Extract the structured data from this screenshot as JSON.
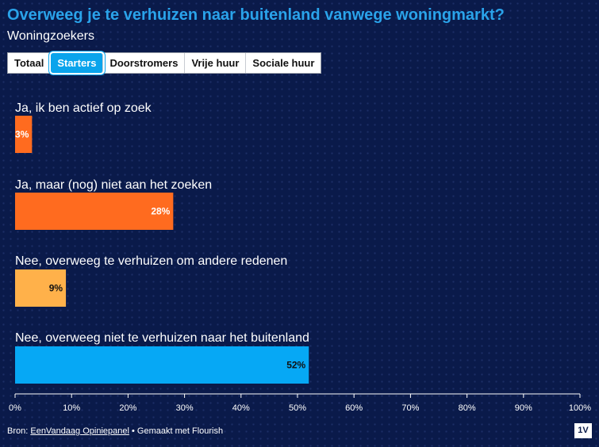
{
  "title": "Overweeg je te verhuizen naar buitenland vanwege woningmarkt?",
  "subtitle": "Woningzoekers",
  "tabs": [
    {
      "label": "Totaal",
      "active": false
    },
    {
      "label": "Starters",
      "active": true
    },
    {
      "label": "Doorstromers",
      "active": false
    },
    {
      "label": "Vrije huur",
      "active": false
    },
    {
      "label": "Sociale huur",
      "active": false
    }
  ],
  "chart_data": {
    "type": "bar",
    "orientation": "horizontal",
    "categories": [
      "Ja, ik ben actief op zoek",
      "Ja, maar (nog) niet aan het zoeken",
      "Nee, overweeg te verhuizen om andere redenen",
      "Nee, overweeg niet te verhuizen naar het buitenland"
    ],
    "values": [
      3,
      28,
      9,
      52
    ],
    "value_labels": [
      "3%",
      "28%",
      "9%",
      "52%"
    ],
    "colors": [
      "#ff6b1f",
      "#ff6b1f",
      "#ffb14a",
      "#06a8f5"
    ],
    "label_colors": [
      "#ffffff",
      "#ffffff",
      "#111111",
      "#111111"
    ],
    "xlim": [
      0,
      100
    ],
    "xticks": [
      0,
      10,
      20,
      30,
      40,
      50,
      60,
      70,
      80,
      90,
      100
    ],
    "xtick_labels": [
      "0%",
      "10%",
      "20%",
      "30%",
      "40%",
      "50%",
      "60%",
      "70%",
      "80%",
      "90%",
      "100%"
    ],
    "xlabel": "",
    "ylabel": ""
  },
  "footer": {
    "prefix": "Bron: ",
    "source_link": "EenVandaag Opiniepanel",
    "suffix": " • Gemaakt met Flourish"
  },
  "logo_text": "1V"
}
